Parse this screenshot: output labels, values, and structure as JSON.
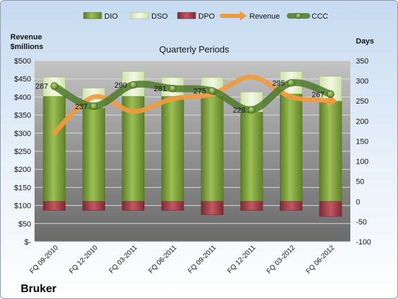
{
  "company": "Bruker",
  "chart_data": {
    "type": "bar",
    "title": "Quarterly Periods",
    "left_axis_label": [
      "Revenue",
      "$millions"
    ],
    "right_axis_label": "Days",
    "categories": [
      "FQ 09-2010",
      "FQ 12-2010",
      "FQ 03-2011",
      "FQ 06-2011",
      "FQ 09-2011",
      "FQ 12-2011",
      "FQ 03-2012",
      "FQ 06-2012"
    ],
    "left_ticks": [
      "$-",
      "$50",
      "$100",
      "$150",
      "$200",
      "$250",
      "$300",
      "$350",
      "$400",
      "$450",
      "$500"
    ],
    "right_ticks": [
      "-100",
      "-50",
      "0",
      "50",
      "100",
      "150",
      "200",
      "250",
      "300",
      "350"
    ],
    "y_left_range": [
      0,
      500
    ],
    "y_right_range": [
      -100,
      350
    ],
    "grid": true,
    "legend_position": "top",
    "series": [
      {
        "name": "DIO",
        "axis": "right",
        "kind": "stacked-bar",
        "color": "#7a9c3a",
        "values": [
          262,
          233,
          262,
          262,
          262,
          223,
          268,
          250
        ]
      },
      {
        "name": "DSO",
        "axis": "right",
        "kind": "stacked-bar",
        "color": "#e6f2cf",
        "values": [
          47,
          49,
          61,
          46,
          46,
          49,
          55,
          61
        ]
      },
      {
        "name": "DPO",
        "axis": "right",
        "kind": "stacked-bar-negative",
        "color": "#a5404a",
        "values": [
          -22,
          -22,
          -22,
          -22,
          -33,
          -22,
          -22,
          -37
        ]
      },
      {
        "name": "Revenue",
        "axis": "left",
        "kind": "line",
        "color": "#f09a3e",
        "values": [
          300,
          400,
          360,
          395,
          408,
          455,
          400,
          390
        ]
      },
      {
        "name": "CCC",
        "axis": "right",
        "kind": "line",
        "color": "#4e7a2a",
        "values": [
          287,
          237,
          290,
          281,
          275,
          228,
          295,
          267
        ]
      }
    ],
    "ccc_labels": [
      "287",
      "237",
      "290",
      "281",
      "275",
      "228",
      "295",
      "267"
    ]
  }
}
